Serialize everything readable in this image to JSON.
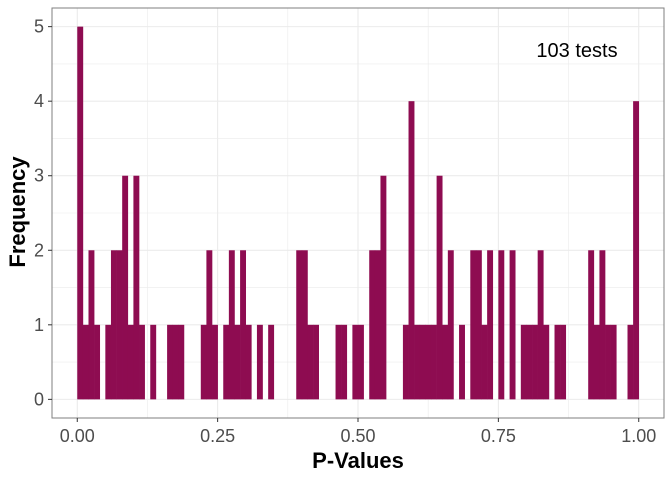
{
  "chart_data": {
    "type": "bar",
    "xlabel": "P-Values",
    "ylabel": "Frequency",
    "annotation": "103 tests",
    "xlim": [
      -0.045,
      1.045
    ],
    "ylim": [
      -0.25,
      5.25
    ],
    "x_ticks": [
      0.0,
      0.25,
      0.5,
      0.75,
      1.0
    ],
    "x_tick_labels": [
      "0.00",
      "0.25",
      "0.50",
      "0.75",
      "1.00"
    ],
    "y_ticks": [
      0,
      1,
      2,
      3,
      4,
      5
    ],
    "y_tick_labels": [
      "0",
      "1",
      "2",
      "3",
      "4",
      "5"
    ],
    "bin_width": 0.01,
    "x": [
      0.005,
      0.015,
      0.025,
      0.035,
      0.045,
      0.055,
      0.065,
      0.075,
      0.085,
      0.095,
      0.105,
      0.115,
      0.125,
      0.135,
      0.145,
      0.155,
      0.165,
      0.175,
      0.185,
      0.195,
      0.205,
      0.215,
      0.225,
      0.235,
      0.245,
      0.255,
      0.265,
      0.275,
      0.285,
      0.295,
      0.305,
      0.315,
      0.325,
      0.335,
      0.345,
      0.355,
      0.365,
      0.375,
      0.385,
      0.395,
      0.405,
      0.415,
      0.425,
      0.435,
      0.445,
      0.455,
      0.465,
      0.475,
      0.485,
      0.495,
      0.505,
      0.515,
      0.525,
      0.535,
      0.545,
      0.555,
      0.565,
      0.575,
      0.585,
      0.595,
      0.605,
      0.615,
      0.625,
      0.635,
      0.645,
      0.655,
      0.665,
      0.675,
      0.685,
      0.695,
      0.705,
      0.715,
      0.725,
      0.735,
      0.745,
      0.755,
      0.765,
      0.775,
      0.785,
      0.795,
      0.805,
      0.815,
      0.825,
      0.835,
      0.845,
      0.855,
      0.865,
      0.875,
      0.885,
      0.895,
      0.905,
      0.915,
      0.925,
      0.935,
      0.945,
      0.955,
      0.965,
      0.975,
      0.985,
      0.995
    ],
    "values": [
      5,
      1,
      2,
      1,
      0,
      1,
      2,
      2,
      3,
      1,
      3,
      1,
      0,
      1,
      0,
      0,
      1,
      1,
      1,
      0,
      0,
      0,
      1,
      2,
      1,
      0,
      1,
      2,
      1,
      2,
      1,
      0,
      1,
      0,
      1,
      0,
      0,
      0,
      0,
      2,
      2,
      1,
      1,
      0,
      0,
      0,
      1,
      1,
      0,
      1,
      1,
      0,
      2,
      2,
      3,
      0,
      0,
      0,
      1,
      4,
      1,
      1,
      1,
      1,
      3,
      1,
      2,
      0,
      1,
      0,
      2,
      2,
      1,
      2,
      0,
      2,
      0,
      2,
      0,
      1,
      1,
      1,
      2,
      1,
      0,
      1,
      1,
      0,
      0,
      0,
      0,
      2,
      1,
      2,
      1,
      1,
      0,
      0,
      1,
      4
    ],
    "grid": true,
    "colors": {
      "bar": "#8e0c51",
      "panel_border": "#7f7f7f",
      "grid": "#ebebeb",
      "tick_text": "#4d4d4d"
    }
  }
}
